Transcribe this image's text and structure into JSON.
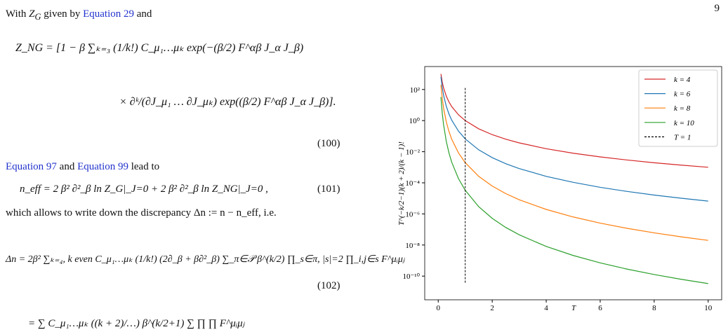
{
  "page_number": "9",
  "intro": [
    "With ",
    "Z",
    "G",
    " given by ",
    "Equation 29",
    " and"
  ],
  "eq100": {
    "line1": "Z_NG = [1 − β ∑ₖ₌₃ (1/k!) C_μ₁…μₖ exp(−(β/2) F^αβ J_α J_β)",
    "line2": "× ∂ᵏ/(∂J_μ₁ … ∂J_μₖ) exp((β/2) F^αβ J_α J_β)].",
    "number": "(100)"
  },
  "lead": [
    "Equation 97",
    " and ",
    "Equation 99",
    " lead to"
  ],
  "eq101": {
    "text": "n_eff = 2 β² ∂²_β ln Z_G|_J=0 + 2 β² ∂²_β ln Z_NG|_J=0 ,",
    "number": "(101)"
  },
  "discrepancy": "which allows to write down the discrepancy Δn := n − n_eff, i.e.",
  "eq102": {
    "text": "Δn = 2β² ∑ₖ₌₄, k even C_μ₁…μₖ (1/k!) (2∂_β + β∂²_β) ∑_π∈𝒫 β^(k/2) ∏_s∈π, |s|=2 ∏_i,j∈s F^μᵢμⱼ",
    "number": "(102)"
  },
  "eq103": {
    "text": "= ∑ C_μ₁…μₖ ((k + 2)/…) β^(k/2+1) ∑ ∏ ∏ F^μᵢμⱼ"
  },
  "chart_data": {
    "type": "line",
    "xlabel": "T",
    "ylabel": "T^(−k/2−1)(k + 2)/(k − 1)!",
    "yscale": "log",
    "x": [
      0.1,
      0.15,
      0.2,
      0.3,
      0.4,
      0.5,
      0.75,
      1,
      1.5,
      2,
      2.5,
      3,
      4,
      5,
      6,
      7,
      8,
      9,
      10
    ],
    "series": [
      {
        "name": "k = 4",
        "color": "#d62728",
        "values": [
          1000,
          296,
          125,
          37,
          15.6,
          8,
          2.37,
          1,
          0.296,
          0.125,
          0.064,
          0.037,
          0.0156,
          0.008,
          0.00463,
          0.00292,
          0.00195,
          0.00137,
          0.001
        ]
      },
      {
        "name": "k = 6",
        "color": "#1f77b4",
        "values": [
          667,
          131.7,
          41.7,
          8.23,
          2.6,
          1.067,
          0.211,
          0.0667,
          0.01317,
          0.00417,
          0.001707,
          0.000823,
          0.00026,
          0.000107,
          5.14e-05,
          2.78e-05,
          1.63e-05,
          1.02e-05,
          6.67e-06
        ]
      },
      {
        "name": "k = 8",
        "color": "#ff7f0e",
        "values": [
          198,
          26.1,
          6.2,
          0.816,
          0.194,
          0.0635,
          0.00837,
          0.00198,
          0.000261,
          6.2e-05,
          2.03e-05,
          8.16e-06,
          1.94e-06,
          6.35e-07,
          2.55e-07,
          1.18e-07,
          6.06e-08,
          3.36e-08,
          1.98e-08
        ]
      },
      {
        "name": "k = 10",
        "color": "#2ca02c",
        "values": [
          33.1,
          2.9,
          0.517,
          0.0454,
          0.00807,
          0.00212,
          0.000186,
          3.31e-05,
          2.9e-06,
          5.17e-07,
          1.35e-07,
          4.54e-08,
          8.07e-09,
          2.12e-09,
          7.09e-10,
          2.81e-10,
          1.26e-10,
          6.22e-11,
          3.31e-11
        ]
      }
    ],
    "vline": {
      "name": "T = 1",
      "x": 1,
      "color": "#000000",
      "style": "dashed"
    },
    "xlim": [
      -0.5,
      10.5
    ],
    "ylim": [
      3e-12,
      3000
    ],
    "xticks": [
      0,
      2,
      4,
      6,
      8,
      10
    ],
    "yticks": [
      {
        "value": 1e-10,
        "label": "10⁻¹⁰"
      },
      {
        "value": 1e-08,
        "label": "10⁻⁸"
      },
      {
        "value": 1e-06,
        "label": "10⁻⁶"
      },
      {
        "value": 0.0001,
        "label": "10⁻⁴"
      },
      {
        "value": 0.01,
        "label": "10⁻²"
      },
      {
        "value": 1,
        "label": "10⁰"
      },
      {
        "value": 100,
        "label": "10²"
      }
    ],
    "legend": "upper-right"
  }
}
